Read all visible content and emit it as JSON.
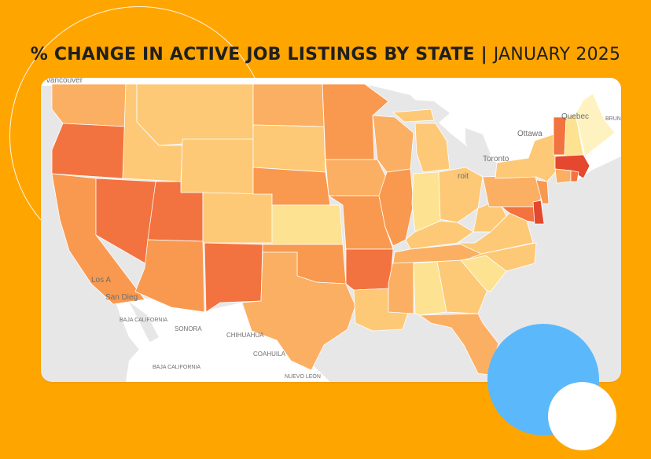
{
  "title": {
    "main": "% CHANGE IN ACTIVE JOB LISTINGS BY STATE",
    "separator": " | ",
    "date": "JANUARY 2025"
  },
  "colors": {
    "background": "#FFA500",
    "land": "#ffffff",
    "water": "#e7e7e7",
    "scale": [
      "#FEF3C0",
      "#FDE291",
      "#FDC977",
      "#FBAF63",
      "#F8994F",
      "#F2733F",
      "#E4482E"
    ],
    "accent_blue": "#5BB8FB"
  },
  "map_labels": {
    "vancouver": "Vancouver",
    "ottawa": "Ottawa",
    "quebec": "Quebec",
    "toronto": "Toronto",
    "detroit": "roit",
    "los_angeles": "Los A",
    "san_diego": "San Dieg",
    "baja_california": "BAJA CALIFORNIA",
    "baja_california_sur": "BAJA CALIFORNIA",
    "sonora": "SONORA",
    "chihuahua": "CHIHUAHUA",
    "coahuila": "COAHUILA",
    "nuevo_leon": "NUEVO LEÓN",
    "brunswick": "BRUN"
  },
  "states": [
    {
      "name": "Washington",
      "level": 3
    },
    {
      "name": "Oregon",
      "level": 5
    },
    {
      "name": "California",
      "level": 4
    },
    {
      "name": "Nevada",
      "level": 5
    },
    {
      "name": "Idaho",
      "level": 2
    },
    {
      "name": "Montana",
      "level": 2
    },
    {
      "name": "Wyoming",
      "level": 2
    },
    {
      "name": "Utah",
      "level": 5
    },
    {
      "name": "Arizona",
      "level": 4
    },
    {
      "name": "Colorado",
      "level": 2
    },
    {
      "name": "New Mexico",
      "level": 5
    },
    {
      "name": "North Dakota",
      "level": 3
    },
    {
      "name": "South Dakota",
      "level": 2
    },
    {
      "name": "Nebraska",
      "level": 4
    },
    {
      "name": "Kansas",
      "level": 1
    },
    {
      "name": "Oklahoma",
      "level": 4
    },
    {
      "name": "Texas",
      "level": 3
    },
    {
      "name": "Minnesota",
      "level": 4
    },
    {
      "name": "Iowa",
      "level": 3
    },
    {
      "name": "Missouri",
      "level": 4
    },
    {
      "name": "Arkansas",
      "level": 5
    },
    {
      "name": "Louisiana",
      "level": 2
    },
    {
      "name": "Wisconsin",
      "level": 3
    },
    {
      "name": "Illinois",
      "level": 4
    },
    {
      "name": "Mississippi",
      "level": 3
    },
    {
      "name": "Michigan",
      "level": 2
    },
    {
      "name": "Indiana",
      "level": 1
    },
    {
      "name": "Kentucky",
      "level": 2
    },
    {
      "name": "Tennessee",
      "level": 3
    },
    {
      "name": "Alabama",
      "level": 1
    },
    {
      "name": "Ohio",
      "level": 2
    },
    {
      "name": "Georgia",
      "level": 2
    },
    {
      "name": "Florida",
      "level": 3
    },
    {
      "name": "South Carolina",
      "level": 1
    },
    {
      "name": "North Carolina",
      "level": 2
    },
    {
      "name": "Virginia",
      "level": 2
    },
    {
      "name": "West Virginia",
      "level": 2
    },
    {
      "name": "Pennsylvania",
      "level": 3
    },
    {
      "name": "Maryland",
      "level": 5
    },
    {
      "name": "Delaware",
      "level": 6
    },
    {
      "name": "New Jersey",
      "level": 4
    },
    {
      "name": "New York",
      "level": 2
    },
    {
      "name": "Vermont",
      "level": 5
    },
    {
      "name": "New Hampshire",
      "level": 1
    },
    {
      "name": "Maine",
      "level": 0
    },
    {
      "name": "Massachusetts",
      "level": 6
    },
    {
      "name": "Connecticut",
      "level": 3
    },
    {
      "name": "Rhode Island",
      "level": 5
    }
  ]
}
